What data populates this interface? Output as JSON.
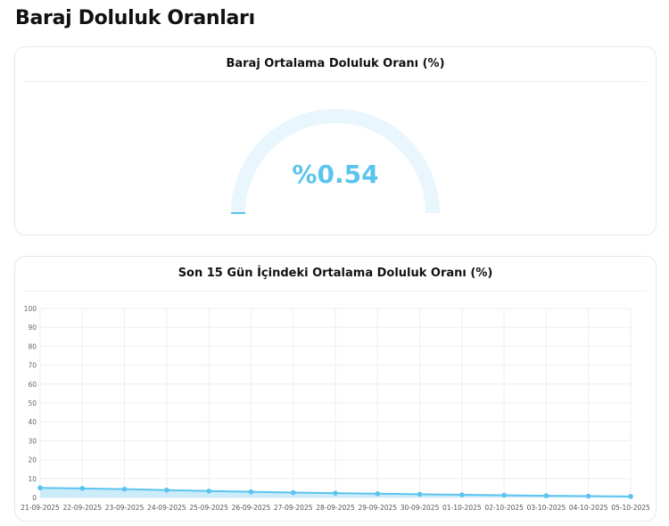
{
  "page": {
    "title": "Baraj Doluluk Oranları"
  },
  "gauge": {
    "title": "Baraj Ortalama Doluluk Oranı (%)",
    "value_label": "%0.54",
    "value_percent": 0.54,
    "track_color": "#e9f6fd",
    "fill_color": "#5bc4ee"
  },
  "chart_data": {
    "type": "area",
    "title": "Son 15 Gün İçindeki Ortalama Doluluk Oranı (%)",
    "xlabel": "",
    "ylabel": "",
    "ylim": [
      0,
      100
    ],
    "yticks": [
      "0",
      "10",
      "20",
      "30",
      "40",
      "50",
      "60",
      "70",
      "80",
      "90",
      "100"
    ],
    "categories": [
      "21-09-2025",
      "22-09-2025",
      "23-09-2025",
      "24-09-2025",
      "25-09-2025",
      "26-09-2025",
      "27-09-2025",
      "28-09-2025",
      "29-09-2025",
      "30-09-2025",
      "01-10-2025",
      "02-10-2025",
      "03-10-2025",
      "04-10-2025",
      "05-10-2025"
    ],
    "values": [
      5.1,
      4.8,
      4.4,
      3.9,
      3.4,
      3.0,
      2.6,
      2.3,
      2.0,
      1.7,
      1.4,
      1.2,
      0.9,
      0.7,
      0.54
    ],
    "grid": true,
    "line_color": "#5bc4ee",
    "fill_color": "#bfe7f9"
  }
}
